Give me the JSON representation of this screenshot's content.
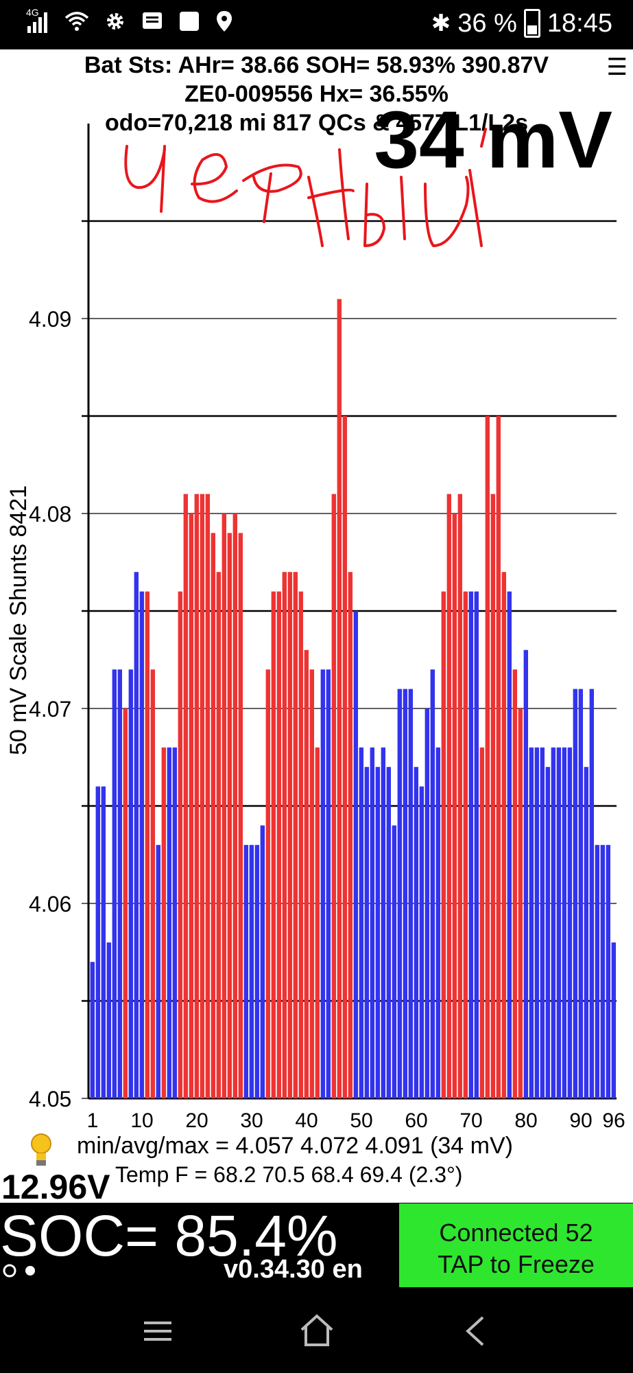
{
  "status_bar": {
    "network": "4G",
    "battery_percent": "36 %",
    "time": "18:45"
  },
  "header": {
    "line1": "Bat Sts: AHr= 38.66 SOH= 58.93% 390.87V",
    "line2": "ZE0-009556   Hx= 36.55%",
    "line3": "odo=70,218 mi  817 QCs & 4577 L1/L2s"
  },
  "spread_mv": "34 mV",
  "y_axis_label": "50 mV Scale   Shunts 8421",
  "chart_data": {
    "type": "bar",
    "title": "34 mV",
    "ylabel": "50 mV Scale   Shunts 8421",
    "ylim": [
      4.05,
      4.1
    ],
    "yticks": [
      "4.05",
      "4.06",
      "4.07",
      "4.08",
      "4.09"
    ],
    "xtick_labels": [
      "1",
      "10",
      "20",
      "30",
      "40",
      "50",
      "60",
      "70",
      "80",
      "90",
      "96"
    ],
    "xtick_cells": [
      1,
      10,
      20,
      30,
      40,
      50,
      60,
      70,
      80,
      90,
      96
    ],
    "colors": {
      "normal": "#3333ee",
      "shunted": "#ee3333"
    },
    "cells": [
      {
        "v": 4.057,
        "c": "b"
      },
      {
        "v": 4.066,
        "c": "b"
      },
      {
        "v": 4.066,
        "c": "b"
      },
      {
        "v": 4.058,
        "c": "b"
      },
      {
        "v": 4.072,
        "c": "b"
      },
      {
        "v": 4.072,
        "c": "b"
      },
      {
        "v": 4.07,
        "c": "r"
      },
      {
        "v": 4.072,
        "c": "b"
      },
      {
        "v": 4.077,
        "c": "b"
      },
      {
        "v": 4.076,
        "c": "b"
      },
      {
        "v": 4.076,
        "c": "r"
      },
      {
        "v": 4.072,
        "c": "r"
      },
      {
        "v": 4.063,
        "c": "b"
      },
      {
        "v": 4.068,
        "c": "r"
      },
      {
        "v": 4.068,
        "c": "b"
      },
      {
        "v": 4.068,
        "c": "b"
      },
      {
        "v": 4.076,
        "c": "r"
      },
      {
        "v": 4.081,
        "c": "r"
      },
      {
        "v": 4.08,
        "c": "r"
      },
      {
        "v": 4.081,
        "c": "r"
      },
      {
        "v": 4.081,
        "c": "r"
      },
      {
        "v": 4.081,
        "c": "r"
      },
      {
        "v": 4.079,
        "c": "r"
      },
      {
        "v": 4.077,
        "c": "r"
      },
      {
        "v": 4.08,
        "c": "r"
      },
      {
        "v": 4.079,
        "c": "r"
      },
      {
        "v": 4.08,
        "c": "r"
      },
      {
        "v": 4.079,
        "c": "r"
      },
      {
        "v": 4.063,
        "c": "b"
      },
      {
        "v": 4.063,
        "c": "b"
      },
      {
        "v": 4.063,
        "c": "b"
      },
      {
        "v": 4.064,
        "c": "b"
      },
      {
        "v": 4.072,
        "c": "r"
      },
      {
        "v": 4.076,
        "c": "r"
      },
      {
        "v": 4.076,
        "c": "r"
      },
      {
        "v": 4.077,
        "c": "r"
      },
      {
        "v": 4.077,
        "c": "r"
      },
      {
        "v": 4.077,
        "c": "r"
      },
      {
        "v": 4.076,
        "c": "r"
      },
      {
        "v": 4.073,
        "c": "r"
      },
      {
        "v": 4.072,
        "c": "r"
      },
      {
        "v": 4.068,
        "c": "r"
      },
      {
        "v": 4.072,
        "c": "b"
      },
      {
        "v": 4.072,
        "c": "b"
      },
      {
        "v": 4.081,
        "c": "r"
      },
      {
        "v": 4.091,
        "c": "r"
      },
      {
        "v": 4.085,
        "c": "r"
      },
      {
        "v": 4.077,
        "c": "r"
      },
      {
        "v": 4.075,
        "c": "b"
      },
      {
        "v": 4.068,
        "c": "b"
      },
      {
        "v": 4.067,
        "c": "b"
      },
      {
        "v": 4.068,
        "c": "b"
      },
      {
        "v": 4.067,
        "c": "b"
      },
      {
        "v": 4.068,
        "c": "b"
      },
      {
        "v": 4.067,
        "c": "b"
      },
      {
        "v": 4.064,
        "c": "b"
      },
      {
        "v": 4.071,
        "c": "b"
      },
      {
        "v": 4.071,
        "c": "b"
      },
      {
        "v": 4.071,
        "c": "b"
      },
      {
        "v": 4.067,
        "c": "b"
      },
      {
        "v": 4.066,
        "c": "b"
      },
      {
        "v": 4.07,
        "c": "b"
      },
      {
        "v": 4.072,
        "c": "b"
      },
      {
        "v": 4.068,
        "c": "b"
      },
      {
        "v": 4.076,
        "c": "r"
      },
      {
        "v": 4.081,
        "c": "r"
      },
      {
        "v": 4.08,
        "c": "r"
      },
      {
        "v": 4.081,
        "c": "r"
      },
      {
        "v": 4.076,
        "c": "r"
      },
      {
        "v": 4.076,
        "c": "b"
      },
      {
        "v": 4.076,
        "c": "b"
      },
      {
        "v": 4.068,
        "c": "r"
      },
      {
        "v": 4.085,
        "c": "r"
      },
      {
        "v": 4.081,
        "c": "r"
      },
      {
        "v": 4.085,
        "c": "r"
      },
      {
        "v": 4.077,
        "c": "r"
      },
      {
        "v": 4.076,
        "c": "b"
      },
      {
        "v": 4.072,
        "c": "r"
      },
      {
        "v": 4.07,
        "c": "r"
      },
      {
        "v": 4.073,
        "c": "b"
      },
      {
        "v": 4.068,
        "c": "b"
      },
      {
        "v": 4.068,
        "c": "b"
      },
      {
        "v": 4.068,
        "c": "b"
      },
      {
        "v": 4.067,
        "c": "b"
      },
      {
        "v": 4.068,
        "c": "b"
      },
      {
        "v": 4.068,
        "c": "b"
      },
      {
        "v": 4.068,
        "c": "b"
      },
      {
        "v": 4.068,
        "c": "b"
      },
      {
        "v": 4.071,
        "c": "b"
      },
      {
        "v": 4.071,
        "c": "b"
      },
      {
        "v": 4.067,
        "c": "b"
      },
      {
        "v": 4.071,
        "c": "b"
      },
      {
        "v": 4.063,
        "c": "b"
      },
      {
        "v": 4.063,
        "c": "b"
      },
      {
        "v": 4.063,
        "c": "b"
      },
      {
        "v": 4.058,
        "c": "b"
      }
    ]
  },
  "stats": {
    "min_avg_max": "min/avg/max = 4.057 4.072 4.091  (34 mV)",
    "temp": "Temp F = 68.2  70.5  68.4  69.4  (2.3°)"
  },
  "pack_voltage": "12.96V",
  "soc": "SOC= 85.4%",
  "version": "v0.34.30 en",
  "connect_button": {
    "line1": "Connected 52",
    "line2": "TAP to Freeze"
  }
}
